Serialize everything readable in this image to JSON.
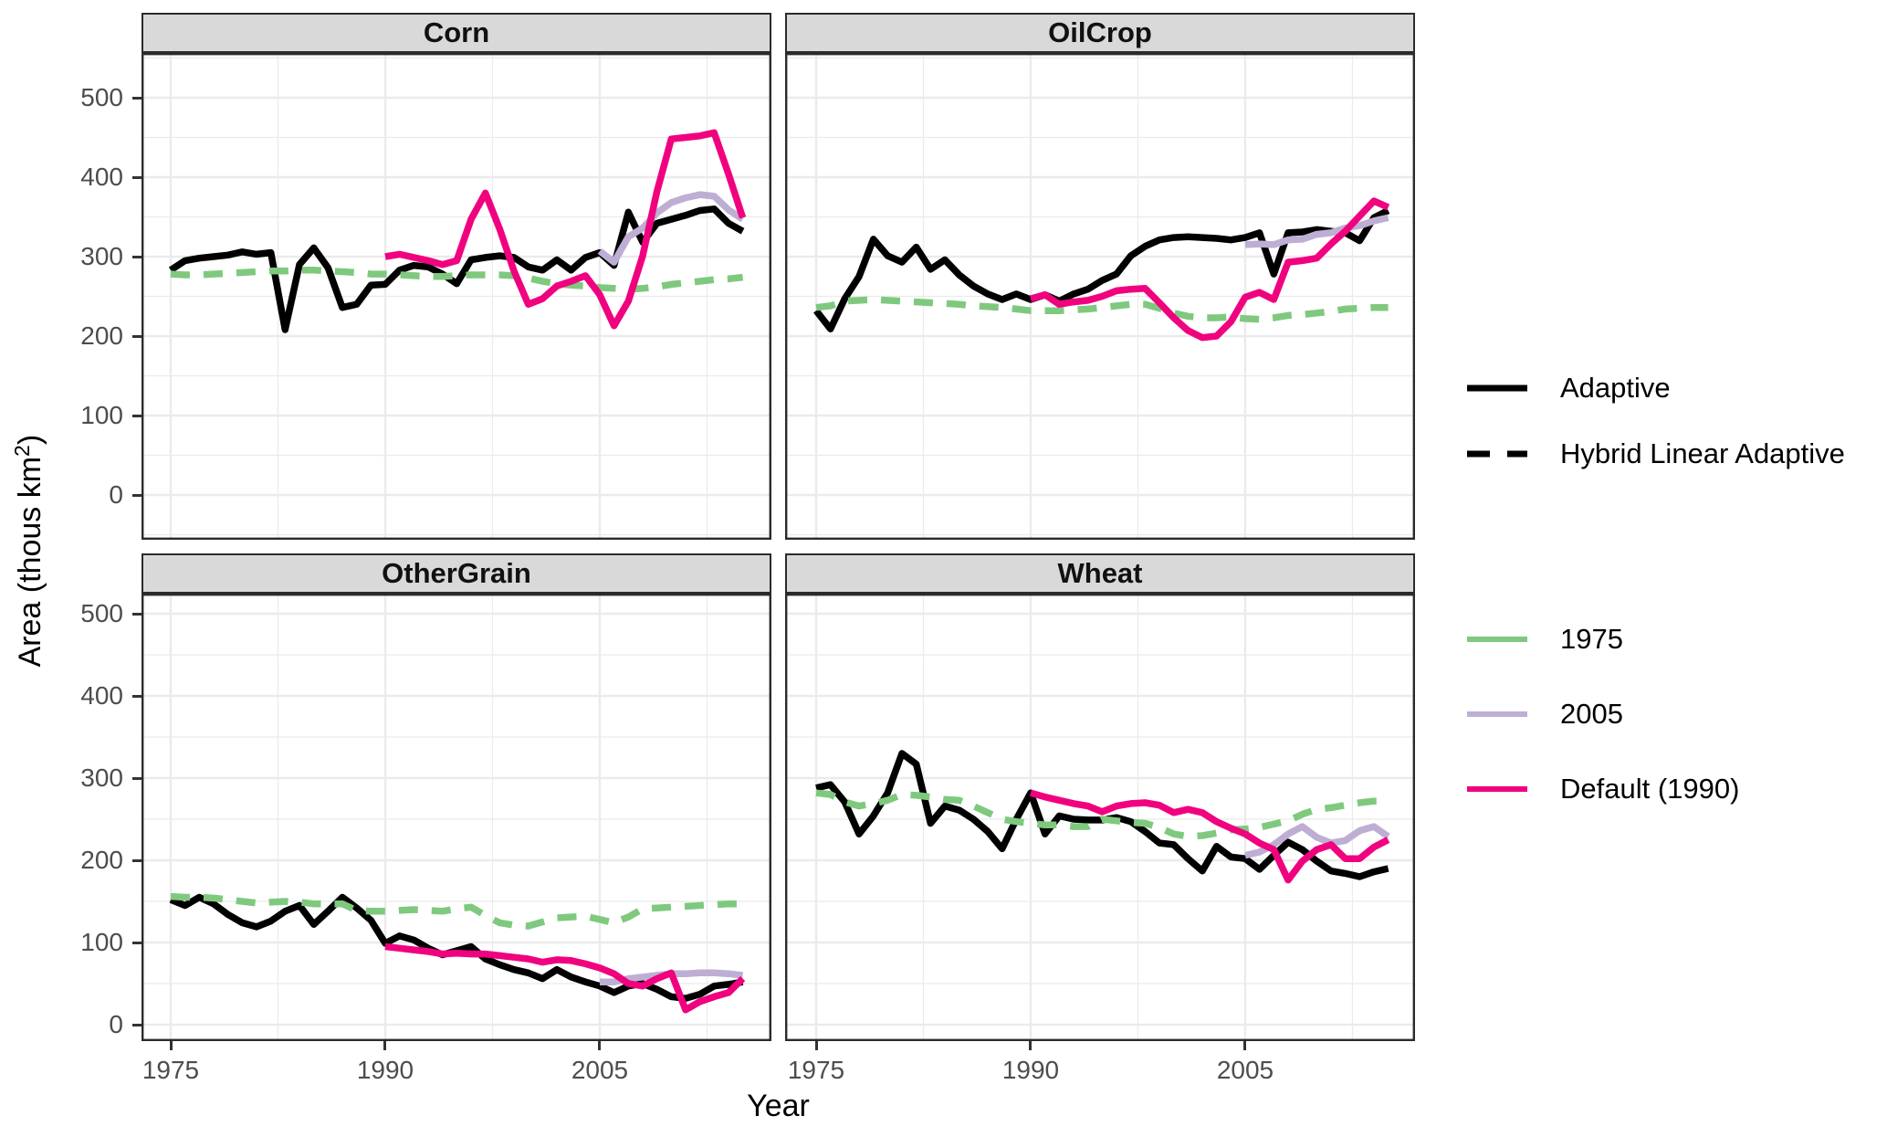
{
  "axes": {
    "y_title": {
      "main": "Area (thous km",
      "sup": "2",
      "close": ")"
    },
    "x_title": "Year",
    "y_ticks": [
      0,
      100,
      200,
      300,
      400,
      500
    ],
    "x_ticks": [
      1975,
      1990,
      2005
    ]
  },
  "legend": {
    "linetype_entries": [
      {
        "label": "Adaptive",
        "style": "solid",
        "color": "#000000"
      },
      {
        "label": "Hybrid Linear Adaptive",
        "style": "dashed",
        "color": "#000000"
      }
    ],
    "color_entries": [
      {
        "label": "1975",
        "color": "#7FC97F"
      },
      {
        "label": "2005",
        "color": "#BEAED4"
      },
      {
        "label": "Default (1990)",
        "color": "#F0027F"
      }
    ]
  },
  "style_colors": {
    "black_line": "#000000",
    "green_line": "#7FC97F",
    "purple_line": "#BEAED4",
    "pink_line": "#F0027F",
    "strip_fill": "#D9D9D9",
    "panel_border": "#2B2B2B",
    "gridline": "#EBEBEB",
    "tick_text": "#4D4D4D"
  },
  "chart_data": [
    {
      "type": "line",
      "title": "Corn",
      "xlabel": "Year",
      "ylabel": "Area (thous km2)",
      "xlim": [
        1973,
        2017
      ],
      "ylim": [
        0,
        520
      ],
      "grid": true,
      "x_start": 1975,
      "x_step": 1,
      "series": [
        {
          "id": "black-solid",
          "legend": "Adaptive",
          "color": "#000000",
          "dash": false,
          "start_year": 1975,
          "values": [
            283,
            295,
            298,
            300,
            302,
            306,
            303,
            305,
            208,
            290,
            311,
            286,
            236,
            240,
            264,
            265,
            283,
            289,
            287,
            278,
            266,
            296,
            299,
            301,
            299,
            287,
            283,
            296,
            283,
            299,
            305,
            289,
            356,
            318,
            342,
            347,
            352,
            358,
            360,
            342,
            332
          ]
        },
        {
          "id": "green-dashed",
          "legend": "1975 Hybrid Linear Adaptive",
          "color": "#7FC97F",
          "dash": true,
          "start_year": 1975,
          "values": [
            278,
            277,
            277,
            278,
            279,
            280,
            281,
            282,
            282,
            283,
            283,
            282,
            281,
            280,
            278,
            278,
            277,
            276,
            275,
            275,
            276,
            277,
            277,
            277,
            276,
            273,
            269,
            266,
            264,
            263,
            261,
            260,
            259,
            260,
            262,
            265,
            267,
            269,
            271,
            272,
            274
          ]
        },
        {
          "id": "purple-solid",
          "legend": "2005 Adaptive",
          "color": "#BEAED4",
          "dash": false,
          "start_year": 2005,
          "values": [
            307,
            293,
            325,
            336,
            355,
            368,
            374,
            378,
            376,
            359,
            347
          ]
        },
        {
          "id": "pink-solid",
          "legend": "Default (1990) Adaptive",
          "color": "#F0027F",
          "dash": false,
          "start_year": 1990,
          "values": [
            300,
            303,
            299,
            295,
            290,
            295,
            347,
            380,
            335,
            282,
            240,
            247,
            263,
            269,
            276,
            252,
            213,
            244,
            301,
            382,
            448,
            450,
            452,
            456,
            404,
            349
          ]
        }
      ]
    },
    {
      "type": "line",
      "title": "OilCrop",
      "xlabel": "Year",
      "ylabel": "Area (thous km2)",
      "xlim": [
        1973,
        2017
      ],
      "ylim": [
        0,
        520
      ],
      "grid": true,
      "x_start": 1975,
      "x_step": 1,
      "series": [
        {
          "id": "black-solid",
          "legend": "Adaptive",
          "color": "#000000",
          "dash": false,
          "start_year": 1975,
          "values": [
            232,
            209,
            247,
            275,
            322,
            301,
            293,
            312,
            284,
            296,
            277,
            263,
            253,
            246,
            253,
            246,
            252,
            244,
            253,
            259,
            270,
            278,
            301,
            313,
            321,
            324,
            325,
            324,
            323,
            321,
            324,
            330,
            278,
            330,
            331,
            334,
            332,
            330,
            320,
            349,
            358
          ]
        },
        {
          "id": "green-dashed",
          "legend": "1975 Hybrid Linear Adaptive",
          "color": "#7FC97F",
          "dash": true,
          "start_year": 1975,
          "values": [
            236,
            238,
            244,
            245,
            246,
            245,
            244,
            243,
            242,
            241,
            240,
            238,
            237,
            236,
            234,
            232,
            232,
            232,
            233,
            234,
            236,
            238,
            240,
            240,
            235,
            229,
            225,
            223,
            223,
            224,
            222,
            221,
            223,
            226,
            227,
            229,
            231,
            234,
            235,
            236,
            236
          ]
        },
        {
          "id": "purple-solid",
          "legend": "2005 Adaptive",
          "color": "#BEAED4",
          "dash": false,
          "start_year": 2005,
          "values": [
            315,
            316,
            315,
            321,
            322,
            328,
            330,
            336,
            339,
            345,
            349
          ]
        },
        {
          "id": "pink-solid",
          "legend": "Default (1990) Adaptive",
          "color": "#F0027F",
          "dash": false,
          "start_year": 1990,
          "values": [
            247,
            252,
            240,
            243,
            245,
            250,
            257,
            259,
            260,
            242,
            223,
            207,
            198,
            200,
            218,
            249,
            255,
            246,
            293,
            295,
            298,
            316,
            332,
            351,
            370,
            362
          ]
        }
      ]
    },
    {
      "type": "line",
      "title": "OtherGrain",
      "xlabel": "Year",
      "ylabel": "Area (thous km2)",
      "xlim": [
        1973,
        2017
      ],
      "ylim": [
        0,
        520
      ],
      "grid": true,
      "x_start": 1975,
      "x_step": 1,
      "series": [
        {
          "id": "black-solid",
          "legend": "Adaptive",
          "color": "#000000",
          "dash": false,
          "start_year": 1975,
          "values": [
            152,
            145,
            155,
            147,
            134,
            124,
            119,
            126,
            138,
            145,
            122,
            138,
            155,
            142,
            127,
            99,
            108,
            103,
            93,
            85,
            90,
            95,
            80,
            73,
            67,
            63,
            56,
            67,
            58,
            52,
            47,
            39,
            47,
            50,
            43,
            34,
            32,
            37,
            47,
            49,
            52
          ]
        },
        {
          "id": "green-dashed",
          "legend": "1975 Hybrid Linear Adaptive",
          "color": "#7FC97F",
          "dash": true,
          "start_year": 1975,
          "values": [
            156,
            155,
            155,
            154,
            152,
            150,
            148,
            149,
            150,
            149,
            147,
            147,
            147,
            139,
            138,
            138,
            139,
            140,
            139,
            138,
            141,
            143,
            133,
            124,
            121,
            120,
            125,
            130,
            131,
            132,
            128,
            124,
            131,
            141,
            142,
            143,
            144,
            145,
            146,
            147,
            147
          ]
        },
        {
          "id": "purple-solid",
          "legend": "2005 Adaptive",
          "color": "#BEAED4",
          "dash": false,
          "start_year": 2005,
          "values": [
            52,
            52,
            56,
            58,
            60,
            62,
            62,
            63,
            63,
            62,
            60
          ]
        },
        {
          "id": "pink-solid",
          "legend": "Default (1990) Adaptive",
          "color": "#F0027F",
          "dash": false,
          "start_year": 1990,
          "values": [
            95,
            93,
            91,
            89,
            86,
            87,
            86,
            86,
            84,
            82,
            80,
            76,
            79,
            78,
            74,
            69,
            62,
            50,
            47,
            56,
            63,
            18,
            28,
            34,
            39,
            56
          ]
        }
      ]
    },
    {
      "type": "line",
      "title": "Wheat",
      "xlabel": "Year",
      "ylabel": "Area (thous km2)",
      "xlim": [
        1973,
        2017
      ],
      "ylim": [
        0,
        520
      ],
      "grid": true,
      "x_start": 1975,
      "x_step": 1,
      "series": [
        {
          "id": "black-solid",
          "legend": "Adaptive",
          "color": "#000000",
          "dash": false,
          "start_year": 1975,
          "values": [
            288,
            292,
            271,
            232,
            254,
            282,
            330,
            317,
            245,
            266,
            261,
            250,
            235,
            214,
            250,
            282,
            232,
            254,
            250,
            249,
            249,
            252,
            247,
            235,
            221,
            219,
            202,
            187,
            217,
            204,
            202,
            189,
            206,
            222,
            213,
            199,
            187,
            184,
            180,
            186,
            190
          ]
        },
        {
          "id": "green-dashed",
          "legend": "1975 Hybrid Linear Adaptive",
          "color": "#7FC97F",
          "dash": true,
          "start_year": 1975,
          "values": [
            282,
            280,
            271,
            266,
            269,
            273,
            280,
            279,
            277,
            274,
            273,
            266,
            258,
            250,
            247,
            245,
            243,
            243,
            241,
            241,
            250,
            248,
            246,
            245,
            240,
            232,
            229,
            230,
            233,
            237,
            238,
            240,
            244,
            248,
            256,
            262,
            264,
            267,
            270,
            272,
            272
          ]
        },
        {
          "id": "purple-solid",
          "legend": "2005 Adaptive",
          "color": "#BEAED4",
          "dash": false,
          "start_year": 2005,
          "values": [
            206,
            210,
            219,
            232,
            241,
            228,
            221,
            224,
            236,
            241,
            229
          ]
        },
        {
          "id": "pink-solid",
          "legend": "Default (1990) Adaptive",
          "color": "#F0027F",
          "dash": false,
          "start_year": 1990,
          "values": [
            282,
            277,
            273,
            269,
            266,
            259,
            266,
            269,
            270,
            267,
            258,
            262,
            258,
            247,
            239,
            232,
            221,
            213,
            176,
            199,
            213,
            219,
            202,
            202,
            216,
            225
          ]
        }
      ]
    }
  ]
}
